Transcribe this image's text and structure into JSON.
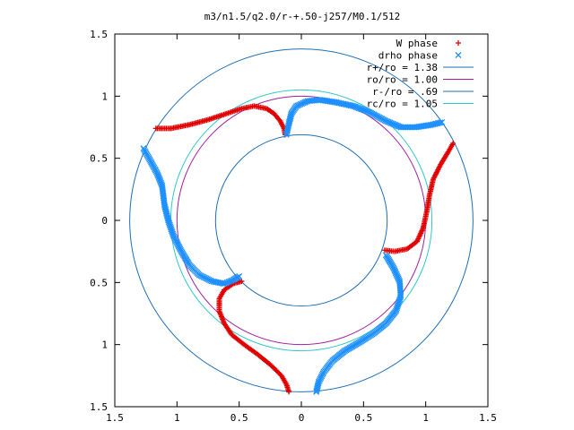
{
  "chart_data": {
    "type": "scatter",
    "title": "m3/n1.5/q2.0/r-+.50-j257/M0.1/512",
    "xlabel": "",
    "ylabel": "",
    "xlim": [
      -1.5,
      1.5
    ],
    "ylim": [
      -1.5,
      1.5
    ],
    "x_tick_values": [
      -1.5,
      -1,
      -0.5,
      0,
      0.5,
      1,
      1.5
    ],
    "x_tick_labels": [
      "1.5",
      "1",
      "0.5",
      "0",
      "0.5",
      "1",
      "1.5"
    ],
    "y_tick_values": [
      1.5,
      1,
      0.5,
      0,
      -0.5,
      -1,
      -1.5
    ],
    "y_tick_labels": [
      "1.5",
      "1",
      "0.5",
      "0",
      "0.5",
      "1",
      "1.5"
    ],
    "grid": false,
    "legend_position": "top-right",
    "circles": [
      {
        "label": "r+/ro = 1.38",
        "radius": 1.38,
        "color": "#1f6fb4"
      },
      {
        "label": "ro/ro = 1.00",
        "radius": 1.0,
        "color": "#a020a0"
      },
      {
        "label": "r-/ro = .69",
        "radius": 0.69,
        "color": "#1f6fb4"
      },
      {
        "label": "rc/ro = 1.05",
        "radius": 1.05,
        "color": "#30c8c8"
      }
    ],
    "series": [
      {
        "name": "W phase",
        "marker": "+",
        "color": "#e00000",
        "points": [
          [
            -1.17,
            0.74
          ],
          [
            -1.05,
            0.74
          ],
          [
            -0.9,
            0.77
          ],
          [
            -0.75,
            0.81
          ],
          [
            -0.6,
            0.86
          ],
          [
            -0.48,
            0.9
          ],
          [
            -0.38,
            0.92
          ],
          [
            -0.28,
            0.9
          ],
          [
            -0.22,
            0.86
          ],
          [
            -0.17,
            0.8
          ],
          [
            -0.14,
            0.74
          ],
          [
            -0.13,
            0.69
          ],
          [
            1.22,
            0.62
          ],
          [
            1.18,
            0.55
          ],
          [
            1.12,
            0.45
          ],
          [
            1.06,
            0.33
          ],
          [
            1.03,
            0.2
          ],
          [
            1.01,
            0.08
          ],
          [
            0.98,
            -0.06
          ],
          [
            0.93,
            -0.17
          ],
          [
            0.85,
            -0.23
          ],
          [
            0.75,
            -0.25
          ],
          [
            0.67,
            -0.24
          ],
          [
            -0.1,
            -1.38
          ],
          [
            -0.12,
            -1.32
          ],
          [
            -0.16,
            -1.25
          ],
          [
            -0.24,
            -1.17
          ],
          [
            -0.35,
            -1.08
          ],
          [
            -0.46,
            -1.0
          ],
          [
            -0.56,
            -0.92
          ],
          [
            -0.62,
            -0.83
          ],
          [
            -0.66,
            -0.73
          ],
          [
            -0.66,
            -0.63
          ],
          [
            -0.62,
            -0.56
          ],
          [
            -0.55,
            -0.51
          ],
          [
            -0.48,
            -0.49
          ]
        ]
      },
      {
        "name": "drho phase",
        "marker": "x",
        "color": "#1e90ff",
        "points": [
          [
            -0.12,
            0.69
          ],
          [
            -0.1,
            0.78
          ],
          [
            -0.08,
            0.86
          ],
          [
            -0.04,
            0.92
          ],
          [
            0.05,
            0.96
          ],
          [
            0.15,
            0.97
          ],
          [
            0.28,
            0.95
          ],
          [
            0.42,
            0.92
          ],
          [
            0.55,
            0.87
          ],
          [
            0.68,
            0.8
          ],
          [
            0.8,
            0.75
          ],
          [
            0.92,
            0.75
          ],
          [
            1.05,
            0.77
          ],
          [
            1.13,
            0.79
          ],
          [
            -1.27,
            0.58
          ],
          [
            -1.22,
            0.49
          ],
          [
            -1.16,
            0.38
          ],
          [
            -1.12,
            0.28
          ],
          [
            -1.1,
            0.12
          ],
          [
            -1.07,
            0.0
          ],
          [
            -1.03,
            -0.12
          ],
          [
            -0.97,
            -0.24
          ],
          [
            -0.9,
            -0.36
          ],
          [
            -0.82,
            -0.44
          ],
          [
            -0.72,
            -0.49
          ],
          [
            -0.62,
            -0.51
          ],
          [
            -0.55,
            -0.48
          ],
          [
            -0.5,
            -0.45
          ],
          [
            0.12,
            -1.38
          ],
          [
            0.14,
            -1.3
          ],
          [
            0.18,
            -1.22
          ],
          [
            0.25,
            -1.13
          ],
          [
            0.35,
            -1.05
          ],
          [
            0.47,
            -0.98
          ],
          [
            0.58,
            -0.91
          ],
          [
            0.68,
            -0.83
          ],
          [
            0.76,
            -0.73
          ],
          [
            0.8,
            -0.61
          ],
          [
            0.79,
            -0.49
          ],
          [
            0.74,
            -0.38
          ],
          [
            0.68,
            -0.28
          ]
        ]
      }
    ]
  }
}
